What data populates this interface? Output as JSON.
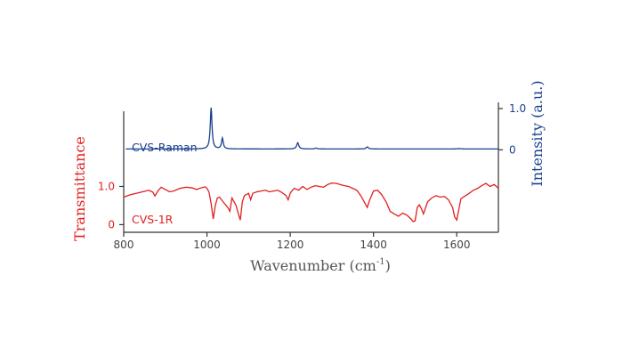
{
  "chart_data": {
    "type": "line",
    "xlabel": "Wavenumber (cm",
    "xlabel_sup": "-1",
    "xlabel_end": ")",
    "left_ylabel": "Transmittance",
    "right_ylabel": "Intensity (a.u.)",
    "xlim": [
      800,
      1700
    ],
    "x_ticks": [
      800,
      1000,
      1200,
      1400,
      1600
    ],
    "x_tick_labels": [
      "800",
      "1000",
      "1200",
      "1400",
      "1600"
    ],
    "left_ylim": [
      -0.2,
      3.2
    ],
    "left_ticks": [
      0,
      1.0
    ],
    "left_tick_labels": [
      "0",
      "1.0"
    ],
    "right_ylim": [
      -2.0,
      1.15
    ],
    "right_ticks": [
      0,
      1.0
    ],
    "right_tick_labels": [
      "0",
      "1.0"
    ],
    "grid": false,
    "colors": {
      "raman": "#1a3f8c",
      "ir": "#e02020",
      "axis": "#333333"
    },
    "series": [
      {
        "name": "CVS-Raman",
        "axis": "right",
        "baseline": 0.02,
        "peaks": [
          {
            "x": 1010,
            "height": 1.0,
            "width": 2.5
          },
          {
            "x": 1037,
            "height": 0.26,
            "width": 2.5
          },
          {
            "x": 1218,
            "height": 0.15,
            "width": 3
          },
          {
            "x": 1262,
            "height": 0.02,
            "width": 3
          },
          {
            "x": 1385,
            "height": 0.05,
            "width": 3
          },
          {
            "x": 1605,
            "height": 0.01,
            "width": 4
          }
        ]
      },
      {
        "name": "CVS-1R",
        "axis": "left",
        "x": [
          800,
          815,
          830,
          845,
          860,
          870,
          875,
          882,
          890,
          900,
          910,
          920,
          935,
          950,
          965,
          975,
          985,
          995,
          1000,
          1005,
          1010,
          1015,
          1020,
          1025,
          1030,
          1040,
          1050,
          1055,
          1060,
          1070,
          1075,
          1080,
          1085,
          1090,
          1100,
          1105,
          1110,
          1120,
          1130,
          1140,
          1150,
          1160,
          1170,
          1180,
          1190,
          1195,
          1200,
          1205,
          1210,
          1220,
          1230,
          1240,
          1250,
          1260,
          1270,
          1280,
          1290,
          1300,
          1310,
          1320,
          1330,
          1340,
          1350,
          1360,
          1370,
          1380,
          1385,
          1390,
          1400,
          1410,
          1420,
          1430,
          1440,
          1450,
          1460,
          1470,
          1480,
          1490,
          1495,
          1500,
          1505,
          1510,
          1515,
          1520,
          1530,
          1540,
          1550,
          1560,
          1570,
          1580,
          1590,
          1595,
          1600,
          1605,
          1610,
          1620,
          1630,
          1640,
          1650,
          1660,
          1670,
          1680,
          1690,
          1700
        ],
        "y": [
          0.72,
          0.78,
          0.82,
          0.86,
          0.9,
          0.85,
          0.75,
          0.88,
          0.98,
          0.92,
          0.86,
          0.88,
          0.95,
          0.98,
          0.96,
          0.92,
          0.96,
          0.99,
          0.95,
          0.85,
          0.55,
          0.15,
          0.5,
          0.7,
          0.72,
          0.58,
          0.45,
          0.35,
          0.7,
          0.5,
          0.3,
          0.12,
          0.6,
          0.76,
          0.82,
          0.65,
          0.82,
          0.86,
          0.88,
          0.9,
          0.86,
          0.88,
          0.9,
          0.84,
          0.76,
          0.65,
          0.82,
          0.9,
          0.95,
          0.9,
          1.0,
          0.92,
          0.98,
          1.02,
          1.0,
          0.98,
          1.05,
          1.09,
          1.08,
          1.05,
          1.02,
          1.0,
          0.95,
          0.9,
          0.75,
          0.55,
          0.45,
          0.62,
          0.88,
          0.9,
          0.78,
          0.6,
          0.35,
          0.28,
          0.22,
          0.3,
          0.25,
          0.15,
          0.08,
          0.1,
          0.45,
          0.52,
          0.42,
          0.28,
          0.6,
          0.7,
          0.76,
          0.72,
          0.74,
          0.65,
          0.45,
          0.2,
          0.12,
          0.4,
          0.68,
          0.75,
          0.82,
          0.9,
          0.95,
          1.02,
          1.08,
          1.0,
          1.05,
          0.95
        ]
      }
    ]
  }
}
